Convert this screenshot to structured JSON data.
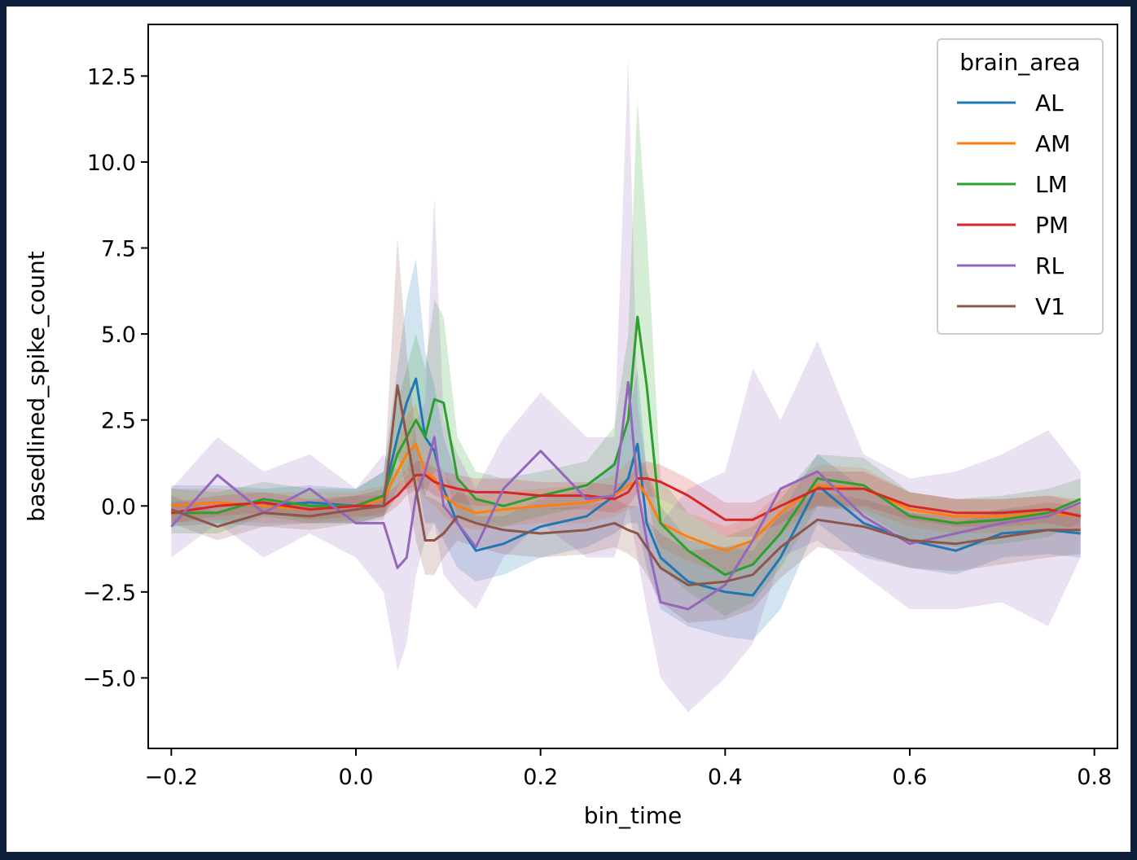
{
  "chart_data": {
    "type": "line",
    "title": "",
    "xlabel": "bin_time",
    "ylabel": "basedlined_spike_count",
    "xlim": [
      -0.225,
      0.825
    ],
    "ylim": [
      -7.05,
      14.0
    ],
    "xticks": [
      -0.2,
      0.0,
      0.2,
      0.4,
      0.6,
      0.8
    ],
    "xtick_labels": [
      "−0.2",
      "0.0",
      "0.2",
      "0.4",
      "0.6",
      "0.8"
    ],
    "yticks": [
      -5.0,
      -2.5,
      0.0,
      2.5,
      5.0,
      7.5,
      10.0,
      12.5
    ],
    "ytick_labels": [
      "−5.0",
      "−2.5",
      "0.0",
      "2.5",
      "5.0",
      "7.5",
      "10.0",
      "12.5"
    ],
    "grid": false,
    "legend": {
      "title": "brain_area",
      "placement": "top-right"
    },
    "x": [
      -0.2,
      -0.15,
      -0.1,
      -0.05,
      0.0,
      0.03,
      0.045,
      0.055,
      0.065,
      0.075,
      0.085,
      0.095,
      0.11,
      0.13,
      0.16,
      0.2,
      0.25,
      0.28,
      0.295,
      0.305,
      0.315,
      0.33,
      0.36,
      0.4,
      0.43,
      0.46,
      0.5,
      0.55,
      0.6,
      0.65,
      0.7,
      0.75,
      0.785
    ],
    "series": [
      {
        "name": "AL",
        "color": "#1f77b4",
        "values": [
          0.0,
          0.1,
          0.0,
          0.1,
          0.0,
          0.3,
          2.0,
          3.0,
          3.7,
          2.0,
          1.6,
          0.5,
          -0.5,
          -1.3,
          -1.1,
          -0.6,
          -0.3,
          0.3,
          0.8,
          1.8,
          -0.5,
          -1.5,
          -2.2,
          -2.5,
          -2.6,
          -1.5,
          0.6,
          -0.5,
          -1.0,
          -1.3,
          -0.8,
          -0.7,
          -0.8
        ],
        "lower": [
          -0.6,
          -0.5,
          -0.6,
          -0.5,
          -0.5,
          -0.3,
          0.5,
          1.0,
          1.0,
          -0.5,
          -0.5,
          -1.0,
          -1.8,
          -2.2,
          -2.0,
          -1.5,
          -1.2,
          -0.8,
          -0.5,
          -0.5,
          -1.8,
          -3.0,
          -3.5,
          -3.8,
          -3.9,
          -3.0,
          -0.5,
          -1.5,
          -1.8,
          -2.0,
          -1.5,
          -1.4,
          -1.5
        ],
        "upper": [
          0.6,
          0.6,
          0.5,
          0.6,
          0.5,
          1.0,
          4.0,
          6.0,
          7.2,
          4.5,
          3.5,
          2.0,
          0.8,
          -0.3,
          -0.3,
          0.2,
          0.5,
          1.3,
          2.5,
          4.0,
          1.0,
          0.0,
          -1.0,
          -1.2,
          -1.3,
          -0.2,
          1.5,
          0.5,
          -0.2,
          -0.5,
          -0.1,
          -0.1,
          -0.2
        ]
      },
      {
        "name": "AM",
        "color": "#ff7f0e",
        "values": [
          0.0,
          0.1,
          0.0,
          -0.1,
          0.0,
          0.2,
          1.0,
          1.5,
          1.8,
          1.0,
          0.8,
          0.3,
          0.0,
          -0.2,
          -0.1,
          0.0,
          0.1,
          0.3,
          0.6,
          0.7,
          0.3,
          -0.5,
          -0.9,
          -1.3,
          -1.0,
          -0.2,
          0.6,
          0.5,
          -0.1,
          -0.3,
          -0.3,
          -0.2,
          -0.3
        ],
        "lower": [
          -0.5,
          -0.4,
          -0.5,
          -0.5,
          -0.4,
          -0.2,
          0.3,
          0.5,
          0.6,
          0.2,
          0.0,
          -0.3,
          -0.6,
          -0.7,
          -0.6,
          -0.5,
          -0.5,
          -0.3,
          -0.1,
          0.0,
          -0.4,
          -1.2,
          -1.6,
          -2.0,
          -1.7,
          -0.8,
          0.0,
          -0.1,
          -0.6,
          -0.8,
          -0.8,
          -0.7,
          -0.8
        ],
        "upper": [
          0.5,
          0.5,
          0.4,
          0.4,
          0.4,
          0.6,
          1.8,
          2.6,
          3.0,
          1.9,
          1.6,
          0.9,
          0.5,
          0.3,
          0.4,
          0.5,
          0.6,
          0.9,
          1.3,
          1.5,
          1.0,
          0.2,
          -0.2,
          -0.6,
          -0.3,
          0.4,
          1.2,
          1.1,
          0.4,
          0.2,
          0.2,
          0.3,
          0.2
        ]
      },
      {
        "name": "LM",
        "color": "#2ca02c",
        "values": [
          -0.2,
          -0.2,
          0.2,
          0.0,
          0.0,
          0.3,
          1.5,
          2.0,
          2.5,
          2.0,
          3.1,
          3.0,
          0.8,
          0.2,
          0.0,
          0.3,
          0.6,
          1.2,
          2.5,
          5.5,
          3.5,
          -0.5,
          -1.3,
          -2.0,
          -1.7,
          -0.8,
          0.8,
          0.6,
          -0.3,
          -0.5,
          -0.4,
          -0.2,
          0.2
        ],
        "lower": [
          -0.8,
          -0.8,
          -0.3,
          -0.5,
          -0.5,
          -0.3,
          0.3,
          0.5,
          0.8,
          0.3,
          1.0,
          1.0,
          -0.3,
          -0.5,
          -0.6,
          -0.3,
          0.0,
          0.3,
          0.5,
          1.0,
          0.5,
          -1.8,
          -2.5,
          -3.2,
          -2.8,
          -1.8,
          0.0,
          -0.2,
          -1.0,
          -1.2,
          -1.1,
          -0.9,
          -0.5
        ],
        "upper": [
          0.5,
          0.4,
          0.7,
          0.5,
          0.5,
          1.0,
          3.0,
          4.0,
          5.0,
          4.0,
          6.0,
          5.5,
          2.0,
          1.0,
          0.8,
          1.0,
          1.3,
          2.3,
          5.0,
          11.8,
          8.0,
          0.8,
          -0.2,
          -0.9,
          -0.6,
          0.2,
          1.5,
          1.4,
          0.4,
          0.2,
          0.3,
          0.5,
          0.8
        ]
      },
      {
        "name": "PM",
        "color": "#d62728",
        "values": [
          -0.2,
          0.0,
          0.1,
          -0.1,
          0.0,
          0.0,
          0.3,
          0.6,
          0.9,
          0.9,
          0.7,
          0.6,
          0.5,
          0.4,
          0.4,
          0.3,
          0.3,
          0.2,
          0.4,
          0.8,
          0.8,
          0.7,
          0.3,
          -0.4,
          -0.4,
          0.0,
          0.5,
          0.5,
          0.0,
          -0.2,
          -0.2,
          -0.1,
          -0.3
        ],
        "lower": [
          -0.5,
          -0.3,
          -0.2,
          -0.4,
          -0.3,
          -0.3,
          0.0,
          0.3,
          0.5,
          0.5,
          0.3,
          0.2,
          0.1,
          0.0,
          0.0,
          -0.1,
          -0.1,
          -0.2,
          0.0,
          0.4,
          0.3,
          0.2,
          -0.2,
          -0.9,
          -0.9,
          -0.5,
          0.0,
          0.0,
          -0.4,
          -0.6,
          -0.6,
          -0.5,
          -0.7
        ],
        "upper": [
          0.1,
          0.3,
          0.4,
          0.2,
          0.3,
          0.3,
          0.6,
          0.9,
          1.3,
          1.3,
          1.1,
          1.0,
          0.9,
          0.8,
          0.8,
          0.7,
          0.7,
          0.6,
          0.8,
          1.2,
          1.3,
          1.2,
          0.8,
          0.1,
          0.1,
          0.5,
          1.0,
          1.0,
          0.4,
          0.2,
          0.2,
          0.3,
          0.1
        ]
      },
      {
        "name": "RL",
        "color": "#9467bd",
        "values": [
          -0.6,
          0.9,
          -0.2,
          0.5,
          -0.5,
          -0.5,
          -1.8,
          -1.5,
          0.3,
          1.0,
          2.0,
          0.0,
          -0.5,
          -1.2,
          0.5,
          1.6,
          0.2,
          0.3,
          3.6,
          0.5,
          -1.0,
          -2.8,
          -3.0,
          -2.3,
          -1.0,
          0.5,
          1.0,
          -0.3,
          -1.1,
          -0.8,
          -0.5,
          -0.3,
          0.1
        ],
        "lower": [
          -1.5,
          -0.5,
          -1.5,
          -0.8,
          -1.5,
          -2.5,
          -4.8,
          -4.0,
          -2.0,
          -1.0,
          -0.5,
          -2.0,
          -2.5,
          -3.0,
          -1.5,
          -0.5,
          -1.5,
          -1.5,
          0.0,
          -1.5,
          -3.0,
          -5.0,
          -6.0,
          -5.0,
          -4.0,
          -1.5,
          -1.0,
          -2.0,
          -3.0,
          -3.0,
          -2.8,
          -3.5,
          -1.5
        ],
        "upper": [
          0.5,
          2.0,
          1.0,
          1.5,
          0.5,
          1.5,
          1.0,
          1.0,
          2.5,
          3.0,
          9.0,
          2.5,
          1.5,
          0.5,
          2.0,
          3.3,
          2.0,
          2.0,
          13.0,
          3.0,
          1.0,
          -0.5,
          0.5,
          1.0,
          4.0,
          2.5,
          4.8,
          1.5,
          0.8,
          1.0,
          1.5,
          2.2,
          1.0
        ]
      },
      {
        "name": "V1",
        "color": "#8c564b",
        "values": [
          -0.1,
          -0.6,
          -0.2,
          -0.3,
          -0.1,
          0.0,
          3.5,
          2.0,
          0.5,
          -1.0,
          -1.0,
          -0.8,
          -0.3,
          -0.5,
          -0.7,
          -0.8,
          -0.7,
          -0.5,
          -0.7,
          -0.8,
          -1.2,
          -1.8,
          -2.3,
          -2.2,
          -2.0,
          -1.2,
          -0.4,
          -0.6,
          -1.0,
          -1.1,
          -0.9,
          -0.7,
          -0.7
        ],
        "lower": [
          -0.5,
          -1.0,
          -0.6,
          -0.7,
          -0.5,
          -0.4,
          1.5,
          0.5,
          -1.0,
          -2.0,
          -2.0,
          -1.5,
          -1.0,
          -1.2,
          -1.4,
          -1.5,
          -1.4,
          -1.2,
          -1.4,
          -1.6,
          -2.0,
          -2.8,
          -3.4,
          -3.3,
          -3.0,
          -2.1,
          -1.2,
          -1.4,
          -1.8,
          -1.9,
          -1.7,
          -1.5,
          -1.4
        ],
        "upper": [
          0.3,
          -0.2,
          0.2,
          0.1,
          0.3,
          0.5,
          7.8,
          4.5,
          2.0,
          0.3,
          0.2,
          0.0,
          0.4,
          0.2,
          0.0,
          -0.1,
          0.0,
          0.2,
          0.0,
          0.0,
          -0.4,
          -0.8,
          -1.3,
          -1.2,
          -1.0,
          -0.3,
          0.4,
          0.2,
          -0.2,
          -0.3,
          -0.1,
          0.1,
          0.0
        ]
      }
    ]
  }
}
